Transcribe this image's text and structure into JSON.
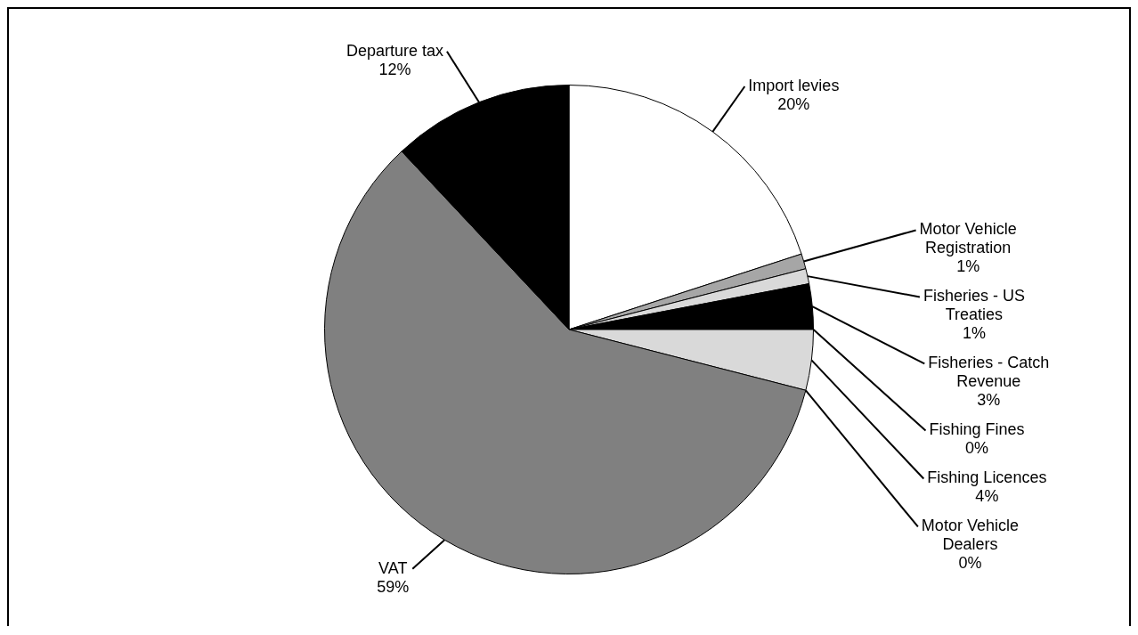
{
  "chart_data": {
    "type": "pie",
    "categories": [
      "Import levies",
      "Motor Vehicle Registration",
      "Fisheries - US Treaties",
      "Fisheries - Catch Revenue",
      "Fishing Fines",
      "Fishing Licences",
      "Motor Vehicle Dealers",
      "VAT",
      "Departure tax"
    ],
    "values": [
      20,
      1,
      1,
      3,
      0,
      4,
      0,
      59,
      12
    ],
    "value_labels": [
      "20%",
      "1%",
      "1%",
      "3%",
      "0%",
      "4%",
      "0%",
      "59%",
      "12%"
    ],
    "colors": [
      "#ffffff",
      "#a6a6a6",
      "#d9d9d9",
      "#000000",
      "#595959",
      "#d9d9d9",
      "#bfbfbf",
      "#808080",
      "#000000"
    ],
    "legend": false
  }
}
